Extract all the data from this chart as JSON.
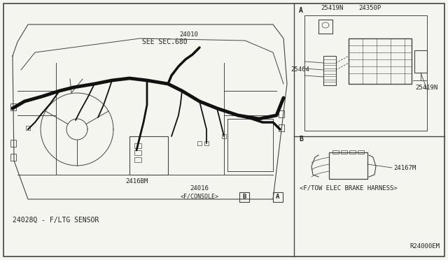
{
  "bg_color": "#f5f5f0",
  "border_color": "#333333",
  "line_color": "#444444",
  "thick_line_color": "#111111",
  "fig_width": 6.4,
  "fig_height": 3.72,
  "dpi": 100,
  "labels": {
    "part_number_bottom": "24028Q - F/LTG SENSOR",
    "ref_number": "R24000EM",
    "see_sec": "SEE SEC.680",
    "part_24010": "24010",
    "part_2416BM": "2416BM",
    "part_24016": "24016",
    "part_fconsole": "<F/CONSOLE>",
    "part_A_label": "A",
    "part_B_label": "B",
    "section_A": "A",
    "section_B": "B",
    "part_25419N_top": "25419N",
    "part_24350P": "24350P",
    "part_25464": "25464",
    "part_25419N_bot": "25419N",
    "part_24167M": "24167M",
    "ftow": "<F/TOW ELEC BRAKE HARNESS>"
  },
  "font_size_small": 6.5,
  "font_size_med": 7.0,
  "font_color": "#222222"
}
